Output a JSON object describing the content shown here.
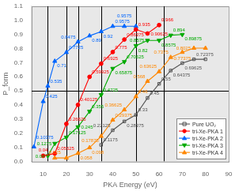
{
  "chart_data": {
    "type": "line",
    "xlabel": "PKA Energy (eV)",
    "ylabel": "P_form",
    "xlim": [
      5,
      90
    ],
    "ylim": [
      0,
      1.1
    ],
    "xticks": [
      10,
      20,
      30,
      40,
      50,
      60,
      70,
      80,
      90
    ],
    "yticks": [
      {
        "value": 0.0,
        "label": "0.0"
      },
      0.1,
      0.2,
      0.3,
      0.4,
      0.5,
      0.6,
      0.7,
      0.8,
      0.9,
      {
        "value": 1.0,
        "label": "1.0"
      },
      1.1
    ],
    "grid": false,
    "legend": "lower right",
    "background_color": "#e8e8e8",
    "vlines": [
      12,
      20,
      25,
      35,
      50,
      62
    ],
    "hline": 0.5,
    "series": [
      {
        "name": "Pure UO₂",
        "color": "#555555",
        "marker": "open_square",
        "x": [
          35,
          40,
          45,
          50,
          55,
          60,
          65,
          70,
          75,
          80
        ],
        "values": [
          0.1175,
          0.22125,
          0.28375,
          0.33,
          0.45,
          0.55,
          0.64375,
          0.69625,
          0.72375,
          0.72375
        ],
        "annotations": [
          {
            "x": 35,
            "y": 0.1175,
            "text": "0.1175"
          },
          {
            "x": 40,
            "y": 0.22125,
            "text": "0.22125"
          },
          {
            "x": 45,
            "y": 0.28375,
            "text": "0.28375"
          },
          {
            "x": 50,
            "y": 0.33,
            "text": "0.33"
          },
          {
            "x": 55,
            "y": 0.45,
            "text": "0.45"
          },
          {
            "x": 60,
            "y": 0.55,
            "text": "0.55"
          },
          {
            "x": 65,
            "y": 0.64375,
            "text": "0.64375"
          },
          {
            "x": 70,
            "y": 0.69625,
            "text": "0.69625"
          },
          {
            "x": 75,
            "y": 0.72375,
            "text": "0.72375"
          }
        ]
      },
      {
        "name": "tri-Xe-PKA 1",
        "color": "#ff0000",
        "marker": "circle",
        "x": [
          10,
          15,
          20,
          25,
          30,
          35,
          40,
          45,
          50,
          55,
          60
        ],
        "values": [
          0.04,
          0.05625,
          0.26625,
          0.40125,
          0.59925,
          0.6925,
          0.775,
          0.86375,
          0.935,
          0.90625,
          0.966
        ],
        "annotations": [
          {
            "x": 10,
            "y": 0.04,
            "text": "0.04"
          },
          {
            "x": 15,
            "y": 0.05625,
            "text": "0.05625"
          },
          {
            "x": 20,
            "y": 0.26625,
            "text": "0.26625"
          },
          {
            "x": 25,
            "y": 0.40125,
            "text": "0.40125"
          },
          {
            "x": 30,
            "y": 0.59925,
            "text": "0.59925"
          },
          {
            "x": 35,
            "y": 0.6925,
            "text": "0.6925"
          },
          {
            "x": 40,
            "y": 0.775,
            "text": "0.775"
          },
          {
            "x": 45,
            "y": 0.86375,
            "text": "0.86375"
          },
          {
            "x": 50,
            "y": 0.935,
            "text": "0.935"
          },
          {
            "x": 55,
            "y": 0.90625,
            "text": "0.90625"
          },
          {
            "x": 60,
            "y": 0.966,
            "text": "0.966"
          }
        ]
      },
      {
        "name": "tri-Xe-PKA 2",
        "color": "#0066ff",
        "marker": "triangle_up",
        "x": [
          6,
          10,
          12,
          15,
          20,
          25,
          30,
          35,
          40,
          45,
          50
        ],
        "values": [
          0.10375,
          0.425,
          0.535,
          0.71,
          0.7725,
          0.8475,
          0.89,
          0.92,
          0.9575,
          0.9575,
          0.9575
        ],
        "annotations": [
          {
            "x": 6,
            "y": 0.10375,
            "text": "0.10375"
          },
          {
            "x": 10,
            "y": 0.425,
            "text": "0.425"
          },
          {
            "x": 12,
            "y": 0.535,
            "text": "0.535"
          },
          {
            "x": 15,
            "y": 0.71,
            "text": "0.71"
          },
          {
            "x": 20,
            "y": 0.7725,
            "text": "0.7725"
          },
          {
            "x": 25,
            "y": 0.8475,
            "text": "0.8475"
          },
          {
            "x": 30,
            "y": 0.89,
            "text": "0.89"
          },
          {
            "x": 35,
            "y": 0.92,
            "text": "0.92"
          },
          {
            "x": 40,
            "y": 0.9575,
            "text": "0.9575"
          },
          {
            "x": 45,
            "y": 0.9575,
            "text": "0.9575"
          }
        ]
      },
      {
        "name": "tri-Xe-PKA 3",
        "color": "#00aa00",
        "marker": "triangle_down",
        "x": [
          12,
          15,
          20,
          25,
          30,
          35,
          40,
          45,
          50,
          55,
          60,
          65,
          70
        ],
        "values": [
          0.04,
          0.1275,
          0.17125,
          0.245,
          0.355,
          0.4725,
          0.65875,
          0.70625,
          0.82,
          0.8575,
          0.8575,
          0.894,
          0.89875
        ],
        "annotations": [
          {
            "x": 12,
            "y": 0.04,
            "text": "0.04"
          },
          {
            "x": 15,
            "y": 0.1275,
            "text": "0.1275"
          },
          {
            "x": 20,
            "y": 0.17125,
            "text": "0.17125"
          },
          {
            "x": 25,
            "y": 0.245,
            "text": "0.245"
          },
          {
            "x": 30,
            "y": 0.355,
            "text": "0.355"
          },
          {
            "x": 35,
            "y": 0.4725,
            "text": "0.4725"
          },
          {
            "x": 40,
            "y": 0.65875,
            "text": "0.65875"
          },
          {
            "x": 45,
            "y": 0.70625,
            "text": "0.70625"
          },
          {
            "x": 50,
            "y": 0.82,
            "text": "0.82"
          },
          {
            "x": 55,
            "y": 0.8575,
            "text": "0.8575"
          },
          {
            "x": 60,
            "y": 0.8575,
            "text": "0.8575"
          },
          {
            "x": 65,
            "y": 0.894,
            "text": "0.894"
          },
          {
            "x": 70,
            "y": 0.89875,
            "text": "0.89875"
          }
        ]
      },
      {
        "name": "tri-Xe-PKA 4",
        "color": "#ff8800",
        "marker": "triangle_up",
        "x": [
          15,
          20,
          25,
          30,
          35,
          40,
          45,
          50,
          55,
          60,
          65,
          70,
          75,
          80
        ],
        "values": [
          0.025,
          0.025,
          0.058,
          0.098,
          0.17875,
          0.29375,
          0.36625,
          0.46,
          0.568,
          0.63625,
          0.7375,
          0.77375,
          0.8025,
          0.8025
        ],
        "annotations": [
          {
            "x": 15,
            "y": 0.025,
            "text": "0.025"
          },
          {
            "x": 25,
            "y": 0.058,
            "text": "0.058"
          },
          {
            "x": 30,
            "y": 0.098,
            "text": "0.098"
          },
          {
            "x": 35,
            "y": 0.17875,
            "text": "0.17875"
          },
          {
            "x": 40,
            "y": 0.29375,
            "text": "0.29375"
          },
          {
            "x": 45,
            "y": 0.36625,
            "text": "0.36625"
          },
          {
            "x": 50,
            "y": 0.46,
            "text": "0.46"
          },
          {
            "x": 55,
            "y": 0.568,
            "text": "0.568"
          },
          {
            "x": 60,
            "y": 0.63625,
            "text": "0.63625"
          },
          {
            "x": 65,
            "y": 0.7375,
            "text": "0.7375"
          },
          {
            "x": 70,
            "y": 0.77375,
            "text": "0.77375"
          },
          {
            "x": 75,
            "y": 0.8025,
            "text": "0.8025"
          }
        ]
      }
    ]
  }
}
